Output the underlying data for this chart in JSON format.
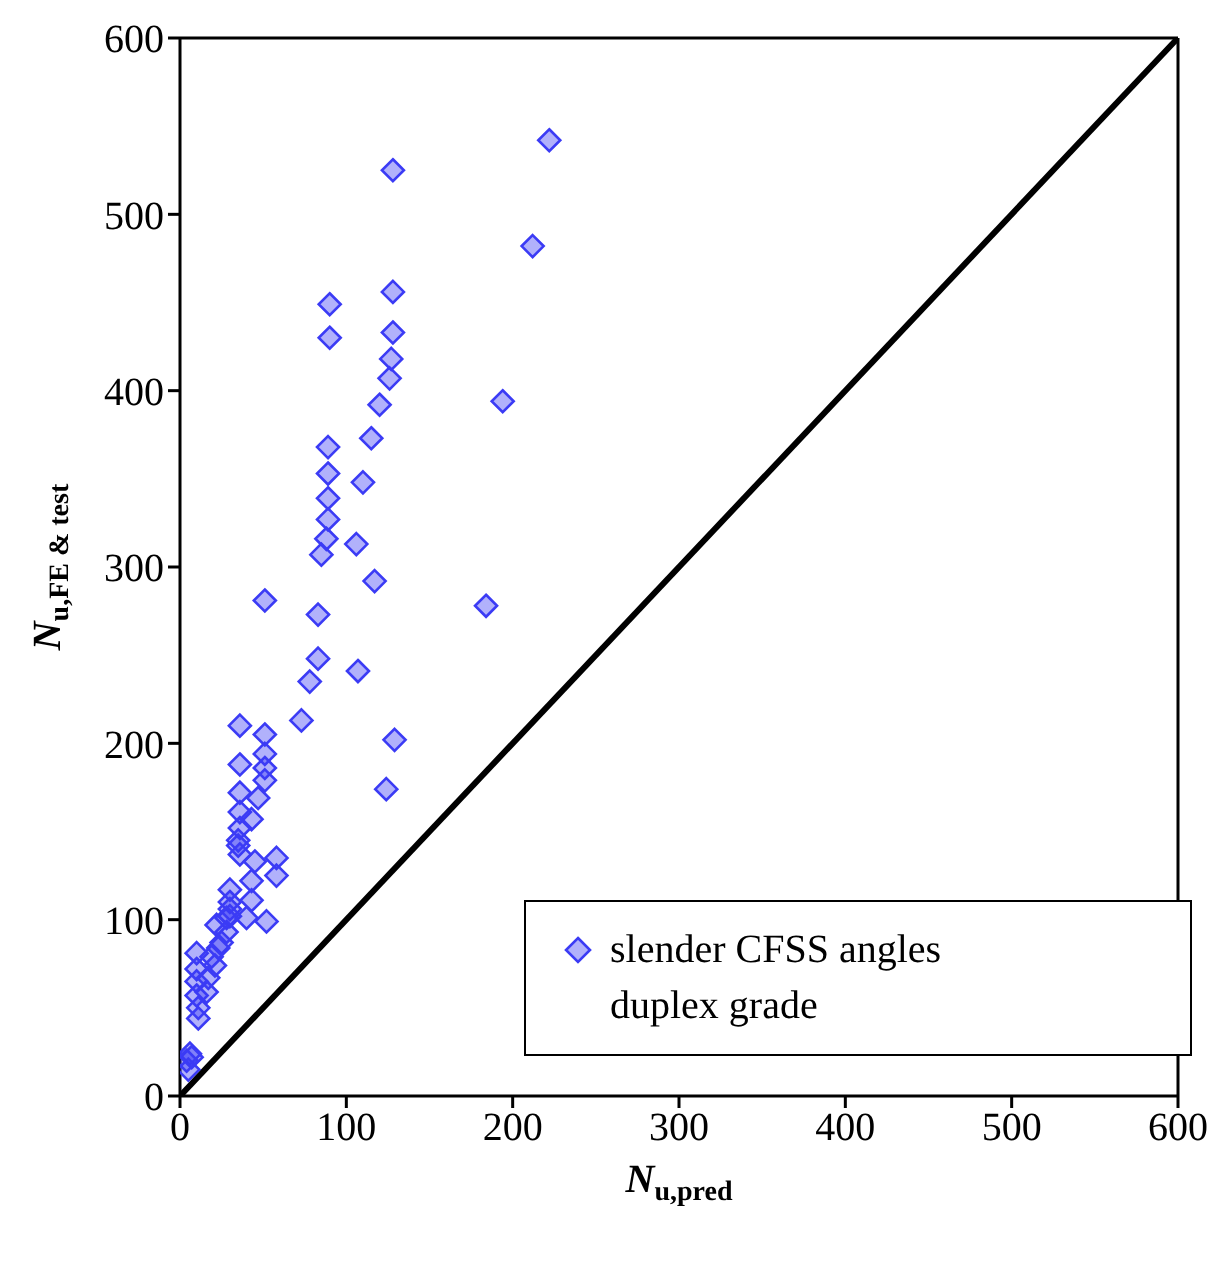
{
  "chart_data": {
    "type": "scatter",
    "xlabel": "N$_{u,pred}$",
    "ylabel": "N$_{u,FE & test}$",
    "xlim": [
      0,
      600
    ],
    "ylim": [
      0,
      600
    ],
    "xticks": [
      0,
      100,
      200,
      300,
      400,
      500,
      600
    ],
    "yticks": [
      0,
      100,
      200,
      300,
      400,
      500,
      600
    ],
    "grid": false,
    "legend": "bottom right",
    "marker": "diamond",
    "series": [
      {
        "name": "slender CFSS angles duplex grade",
        "color": "#3b3bf5",
        "x": [
          222,
          128,
          212,
          90,
          128,
          90,
          128,
          127,
          126,
          120,
          194,
          115,
          89,
          110,
          89,
          89,
          89,
          88,
          85,
          106,
          117,
          51,
          184,
          83,
          83,
          107,
          78,
          73,
          51,
          51,
          51,
          51,
          129,
          124,
          36,
          36,
          36,
          47,
          36,
          43,
          36,
          35,
          35,
          36,
          45,
          58,
          58,
          43,
          43,
          52,
          40,
          30,
          30,
          30,
          30,
          28,
          22,
          28,
          25,
          23,
          19,
          10,
          21,
          10,
          17,
          10,
          16,
          10,
          11,
          11,
          6,
          7,
          5,
          4
        ],
        "values": [
          542,
          525,
          482,
          449,
          456,
          430,
          433,
          418,
          407,
          392,
          394,
          373,
          368,
          348,
          353,
          339,
          327,
          316,
          307,
          313,
          292,
          281,
          278,
          273,
          248,
          241,
          235,
          213,
          205,
          194,
          186,
          179,
          202,
          174,
          210,
          188,
          172,
          169,
          161,
          157,
          152,
          145,
          142,
          137,
          133,
          135,
          125,
          122,
          111,
          99,
          101,
          117,
          110,
          106,
          102,
          101,
          97,
          93,
          87,
          84,
          79,
          81,
          74,
          72,
          67,
          65,
          59,
          57,
          50,
          44,
          24,
          22,
          15,
          20
        ]
      },
      {
        "type": "line",
        "color": "#000000",
        "line_style": "solid",
        "marker": "none",
        "x": [
          0,
          600
        ],
        "values": [
          0,
          600
        ]
      }
    ]
  }
}
